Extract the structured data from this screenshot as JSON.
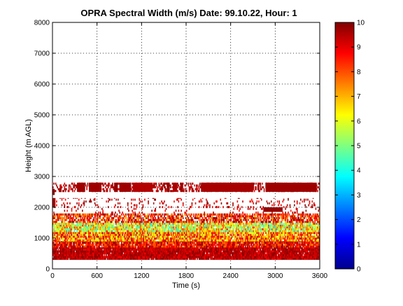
{
  "chart_data": {
    "type": "heatmap",
    "title": "OPRA Spectral Width (m/s)  Date: 99.10.22, Hour: 1",
    "xlabel": "Time (s)",
    "ylabel": "Height (m AGL)",
    "xlim": [
      0,
      3600
    ],
    "ylim": [
      0,
      8000
    ],
    "x_ticks": [
      "0",
      "600",
      "1200",
      "1800",
      "2400",
      "3000",
      "3600"
    ],
    "y_ticks": [
      "0",
      "1000",
      "2000",
      "3000",
      "4000",
      "5000",
      "6000",
      "7000",
      "8000"
    ],
    "grid": true,
    "colorbar": {
      "range": [
        0,
        10
      ],
      "ticks": [
        "0",
        "1",
        "2",
        "3",
        "4",
        "5",
        "6",
        "7",
        "8",
        "9",
        "10"
      ],
      "colormap": "jet"
    },
    "bands": [
      {
        "height_range": [
          300,
          700
        ],
        "value_range": [
          8.8,
          10.0
        ],
        "coverage": 0.97
      },
      {
        "height_range": [
          700,
          900
        ],
        "value_range": [
          7.5,
          10.0
        ],
        "coverage": 0.93
      },
      {
        "height_range": [
          900,
          1200
        ],
        "value_range": [
          5.5,
          9.5
        ],
        "coverage": 0.92
      },
      {
        "height_range": [
          1200,
          1500
        ],
        "value_range": [
          4.0,
          8.5
        ],
        "coverage": 0.9
      },
      {
        "height_range": [
          1500,
          1800
        ],
        "value_range": [
          7.0,
          10.0
        ],
        "coverage": 0.7
      },
      {
        "height_range": [
          1800,
          2300
        ],
        "value_range": [
          8.5,
          10.0
        ],
        "coverage": 0.12
      },
      {
        "height_range": [
          2500,
          2800
        ],
        "value_range": [
          9.0,
          10.0
        ],
        "coverage": 0.45
      }
    ],
    "segments": [
      {
        "t_range": [
          0,
          40
        ],
        "height_range": [
          2000,
          2300
        ],
        "value": 9.6
      },
      {
        "t_range": [
          0,
          30
        ],
        "height_range": [
          2400,
          2600
        ],
        "value": 9.8
      },
      {
        "t_range": [
          330,
          440
        ],
        "height_range": [
          2500,
          2800
        ],
        "value": 9.7
      },
      {
        "t_range": [
          490,
          660
        ],
        "height_range": [
          2500,
          2800
        ],
        "value": 9.7
      },
      {
        "t_range": [
          830,
          880
        ],
        "height_range": [
          2500,
          2800
        ],
        "value": 9.8
      },
      {
        "t_range": [
          900,
          1060
        ],
        "height_range": [
          2500,
          2800
        ],
        "value": 9.7
      },
      {
        "t_range": [
          1080,
          1350
        ],
        "height_range": [
          2500,
          2800
        ],
        "value": 9.5
      },
      {
        "t_range": [
          1540,
          1580
        ],
        "height_range": [
          2500,
          2800
        ],
        "value": 9.8
      },
      {
        "t_range": [
          1620,
          1680
        ],
        "height_range": [
          2500,
          2800
        ],
        "value": 9.6
      },
      {
        "t_range": [
          1720,
          1760
        ],
        "height_range": [
          2500,
          2800
        ],
        "value": 9.7
      },
      {
        "t_range": [
          2000,
          2700
        ],
        "height_range": [
          2500,
          2800
        ],
        "value": 9.6
      },
      {
        "t_range": [
          2870,
          3560
        ],
        "height_range": [
          2500,
          2800
        ],
        "value": 9.7
      },
      {
        "t_range": [
          2840,
          3100
        ],
        "height_range": [
          1850,
          2000
        ],
        "value": 9.8
      }
    ]
  }
}
